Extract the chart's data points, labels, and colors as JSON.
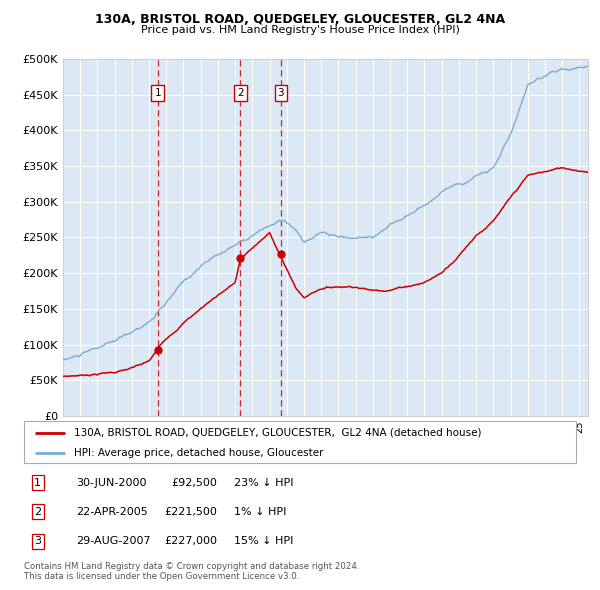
{
  "title": "130A, BRISTOL ROAD, QUEDGELEY, GLOUCESTER, GL2 4NA",
  "subtitle": "Price paid vs. HM Land Registry's House Price Index (HPI)",
  "legend_property": "130A, BRISTOL ROAD, QUEDGELEY, GLOUCESTER,  GL2 4NA (detached house)",
  "legend_hpi": "HPI: Average price, detached house, Gloucester",
  "transactions": [
    {
      "num": 1,
      "date": "30-JUN-2000",
      "price": 92500,
      "pct": "23% ↓ HPI",
      "x_year": 2000.5
    },
    {
      "num": 2,
      "date": "22-APR-2005",
      "price": 221500,
      "pct": "1% ↓ HPI",
      "x_year": 2005.3
    },
    {
      "num": 3,
      "date": "29-AUG-2007",
      "price": 227000,
      "pct": "15% ↓ HPI",
      "x_year": 2007.65
    }
  ],
  "footnote1": "Contains HM Land Registry data © Crown copyright and database right 2024.",
  "footnote2": "This data is licensed under the Open Government Licence v3.0.",
  "property_line_color": "#cc0000",
  "hpi_line_color": "#7aadd4",
  "plot_bg_color": "#dce9f5",
  "ylim": [
    0,
    500000
  ],
  "xlim_start": 1995,
  "xlim_end": 2025.5,
  "yticks": [
    0,
    50000,
    100000,
    150000,
    200000,
    250000,
    300000,
    350000,
    400000,
    450000,
    500000
  ],
  "ytick_labels": [
    "£0",
    "£50K",
    "£100K",
    "£150K",
    "£200K",
    "£250K",
    "£300K",
    "£350K",
    "£400K",
    "£450K",
    "£500K"
  ],
  "hpi_keypoints": [
    [
      1995,
      78000
    ],
    [
      1996,
      84000
    ],
    [
      1997,
      92000
    ],
    [
      1998,
      100000
    ],
    [
      1999,
      112000
    ],
    [
      2000,
      128000
    ],
    [
      2001,
      152000
    ],
    [
      2002,
      180000
    ],
    [
      2003,
      202000
    ],
    [
      2004,
      218000
    ],
    [
      2005,
      232000
    ],
    [
      2006,
      248000
    ],
    [
      2007,
      262000
    ],
    [
      2007.8,
      268000
    ],
    [
      2008.5,
      252000
    ],
    [
      2009,
      232000
    ],
    [
      2009.5,
      240000
    ],
    [
      2010,
      245000
    ],
    [
      2011,
      238000
    ],
    [
      2012,
      236000
    ],
    [
      2013,
      240000
    ],
    [
      2014,
      255000
    ],
    [
      2015,
      270000
    ],
    [
      2016,
      285000
    ],
    [
      2017,
      302000
    ],
    [
      2018,
      318000
    ],
    [
      2019,
      330000
    ],
    [
      2020,
      342000
    ],
    [
      2021,
      390000
    ],
    [
      2022,
      452000
    ],
    [
      2023,
      462000
    ],
    [
      2024,
      472000
    ],
    [
      2025,
      478000
    ]
  ],
  "prop_keypoints": [
    [
      1995,
      55000
    ],
    [
      1996,
      57000
    ],
    [
      1997,
      60000
    ],
    [
      1998,
      63000
    ],
    [
      1999,
      68000
    ],
    [
      2000,
      76000
    ],
    [
      2000.5,
      92500
    ],
    [
      2001,
      108000
    ],
    [
      2002,
      132000
    ],
    [
      2003,
      152000
    ],
    [
      2004,
      172000
    ],
    [
      2005,
      190000
    ],
    [
      2005.3,
      221500
    ],
    [
      2006,
      238000
    ],
    [
      2007,
      258000
    ],
    [
      2007.65,
      227000
    ],
    [
      2008,
      208000
    ],
    [
      2008.5,
      183000
    ],
    [
      2009,
      168000
    ],
    [
      2009.5,
      176000
    ],
    [
      2010,
      183000
    ],
    [
      2011,
      186000
    ],
    [
      2012,
      188000
    ],
    [
      2013,
      183000
    ],
    [
      2014,
      186000
    ],
    [
      2015,
      192000
    ],
    [
      2016,
      198000
    ],
    [
      2017,
      212000
    ],
    [
      2018,
      238000
    ],
    [
      2019,
      268000
    ],
    [
      2020,
      288000
    ],
    [
      2021,
      318000
    ],
    [
      2022,
      348000
    ],
    [
      2023,
      353000
    ],
    [
      2024,
      358000
    ],
    [
      2025,
      356000
    ]
  ]
}
